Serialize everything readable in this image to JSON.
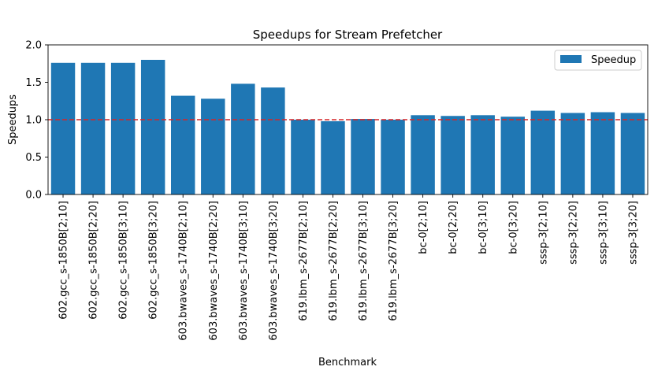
{
  "chart_data": {
    "type": "bar",
    "title": "Speedups for Stream Prefetcher",
    "xlabel": "Benchmark",
    "ylabel": "Speedups",
    "ylim": [
      0,
      2.0
    ],
    "yticks": [
      "0.0",
      "0.5",
      "1.0",
      "1.5",
      "2.0"
    ],
    "categories": [
      "602.gcc_s-1850B[2;10]",
      "602.gcc_s-1850B[2;20]",
      "602.gcc_s-1850B[3;10]",
      "602.gcc_s-1850B[3;20]",
      "603.bwaves_s-1740B[2;10]",
      "603.bwaves_s-1740B[2;20]",
      "603.bwaves_s-1740B[3;10]",
      "603.bwaves_s-1740B[3;20]",
      "619.lbm_s-2677B[2;10]",
      "619.lbm_s-2677B[2;20]",
      "619.lbm_s-2677B[3;10]",
      "619.lbm_s-2677B[3;20]",
      "bc-0[2;10]",
      "bc-0[2;20]",
      "bc-0[3;10]",
      "bc-0[3;20]",
      "sssp-3[2;10]",
      "sssp-3[2;20]",
      "sssp-3[3;10]",
      "sssp-3[3;20]"
    ],
    "series": [
      {
        "name": "Speedup",
        "color": "#1f77b4",
        "values": [
          1.76,
          1.76,
          1.76,
          1.8,
          1.32,
          1.28,
          1.48,
          1.43,
          1.0,
          0.98,
          1.01,
          1.0,
          1.06,
          1.05,
          1.06,
          1.04,
          1.12,
          1.09,
          1.1,
          1.09
        ]
      }
    ],
    "reference_line": {
      "y": 1.0,
      "color": "#d62728",
      "style": "dashed"
    },
    "legend": {
      "position": "top-right"
    },
    "grid": false
  }
}
